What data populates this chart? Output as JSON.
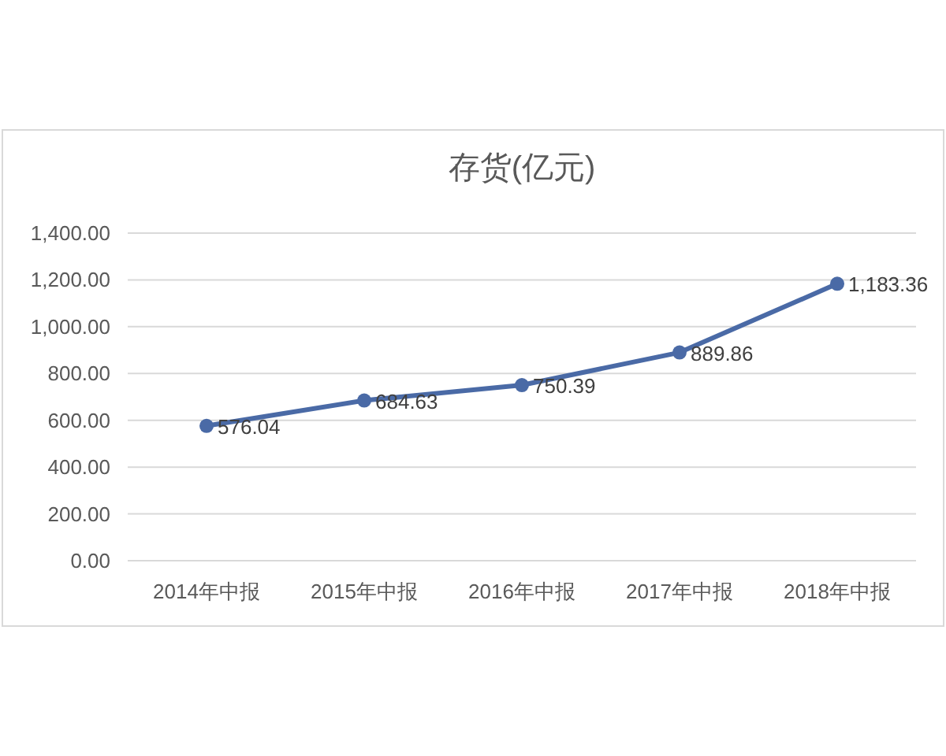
{
  "chart_data": {
    "type": "line",
    "title": "存货(亿元)",
    "categories": [
      "2014年中报",
      "2015年中报",
      "2016年中报",
      "2017年中报",
      "2018年中报"
    ],
    "series": [
      {
        "color": "#4a6aa6",
        "values": [
          576.04,
          684.63,
          750.39,
          889.86,
          1183.36
        ],
        "value_labels": [
          "576.04",
          "684.63",
          "750.39",
          "889.86",
          "1,183.36"
        ]
      }
    ],
    "ylim": [
      0,
      1400
    ],
    "yticks": [
      {
        "value": 0,
        "label": "0.00"
      },
      {
        "value": 200,
        "label": "200.00"
      },
      {
        "value": 400,
        "label": "400.00"
      },
      {
        "value": 600,
        "label": "600.00"
      },
      {
        "value": 800,
        "label": "800.00"
      },
      {
        "value": 1000,
        "label": "1,000.00"
      },
      {
        "value": 1200,
        "label": "1,200.00"
      },
      {
        "value": 1400,
        "label": "1,400.00"
      }
    ],
    "grid": "y",
    "marker": "circle",
    "line_style": "solid"
  }
}
